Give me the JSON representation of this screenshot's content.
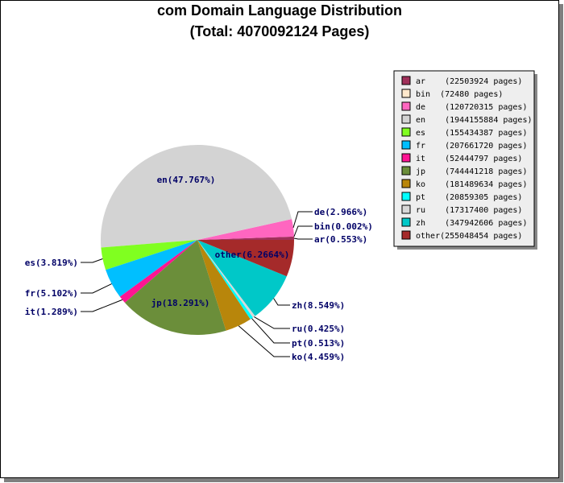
{
  "title": "com Domain Language Distribution",
  "subtitle": "(Total: 4070092124 Pages)",
  "chart_data": {
    "type": "pie",
    "title": "com Domain Language Distribution",
    "subtitle": "(Total: 4070092124 Pages)",
    "total_pages": 4070092124,
    "legend_position": "top-right",
    "slices": [
      {
        "name": "ar",
        "pages": 22503924,
        "percent_label": "ar(0.553%)",
        "legend_label": "ar    (22503924 pages)",
        "color": "#a0305a"
      },
      {
        "name": "bin",
        "pages": 72480,
        "percent_label": "bin(0.002%)",
        "legend_label": "bin  (72480 pages)",
        "color": "#ffe8cc"
      },
      {
        "name": "de",
        "pages": 120720315,
        "percent_label": "de(2.966%)",
        "legend_label": "de    (120720315 pages)",
        "color": "#ff66c0"
      },
      {
        "name": "en",
        "pages": 1944155884,
        "percent_label": "en(47.767%)",
        "legend_label": "en    (1944155884 pages)",
        "color": "#d3d3d3"
      },
      {
        "name": "es",
        "pages": 155434387,
        "percent_label": "es(3.819%)",
        "legend_label": "es    (155434387 pages)",
        "color": "#80ff20"
      },
      {
        "name": "fr",
        "pages": 207661720,
        "percent_label": "fr(5.102%)",
        "legend_label": "fr    (207661720 pages)",
        "color": "#00bfff"
      },
      {
        "name": "it",
        "pages": 52444797,
        "percent_label": "it(1.289%)",
        "legend_label": "it    (52444797 pages)",
        "color": "#ff1493"
      },
      {
        "name": "jp",
        "pages": 744441218,
        "percent_label": "jp(18.291%)",
        "legend_label": "jp    (744441218 pages)",
        "color": "#6b8e3a"
      },
      {
        "name": "ko",
        "pages": 181489634,
        "percent_label": "ko(4.459%)",
        "legend_label": "ko    (181489634 pages)",
        "color": "#b8860b"
      },
      {
        "name": "pt",
        "pages": 20859305,
        "percent_label": "pt(0.513%)",
        "legend_label": "pt    (20859305 pages)",
        "color": "#00ffff"
      },
      {
        "name": "ru",
        "pages": 17317400,
        "percent_label": "ru(0.425%)",
        "legend_label": "ru    (17317400 pages)",
        "color": "#d8d8d8"
      },
      {
        "name": "zh",
        "pages": 347942606,
        "percent_label": "zh(8.549%)",
        "legend_label": "zh    (347942606 pages)",
        "color": "#00c8c8"
      },
      {
        "name": "other",
        "pages": 255048454,
        "percent_label": "other(6.2664%)",
        "legend_label": "other(255048454 pages)",
        "color": "#a52a2a"
      }
    ]
  }
}
